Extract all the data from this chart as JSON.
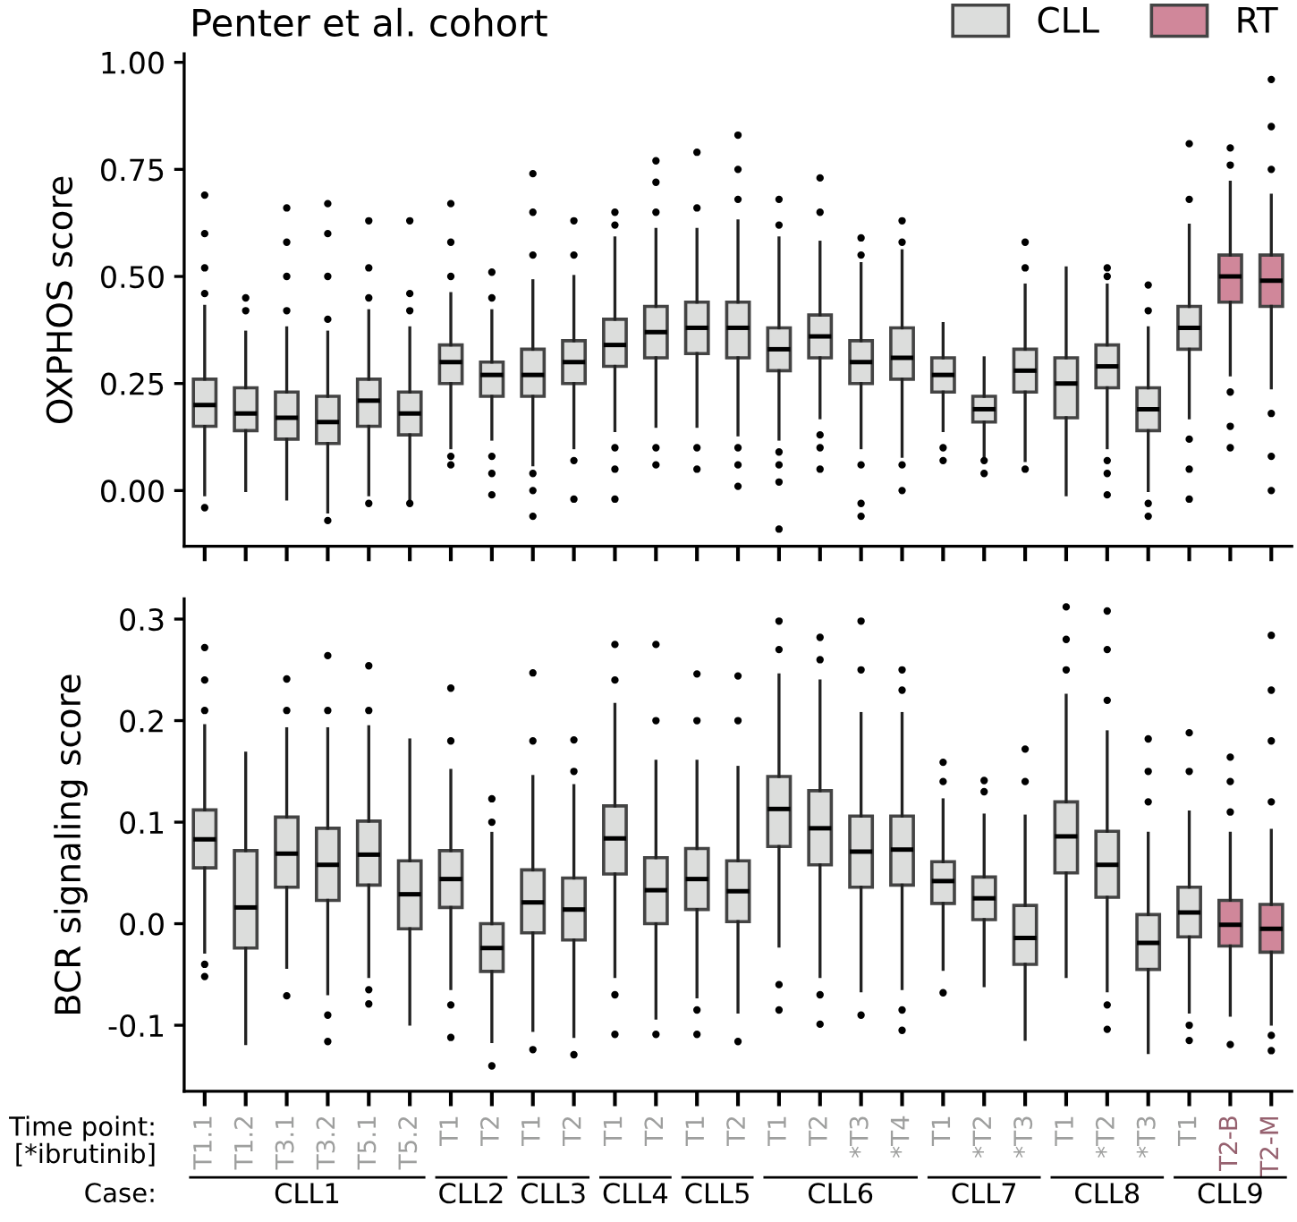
{
  "chart_data": [
    {
      "type": "box",
      "title": "Penter et al. cohort",
      "ylabel": "OXPHOS score",
      "legend": "top right",
      "tick_labels": "y",
      "categories": [
        null,
        null,
        null,
        null,
        null,
        null,
        null,
        null,
        null,
        null,
        null,
        null,
        null,
        null,
        null,
        null,
        null,
        null,
        null,
        null,
        null,
        null,
        null,
        null,
        null,
        null,
        null
      ],
      "ylim": [
        -0.13,
        1.02
      ],
      "yticks": [
        {
          "value": 0,
          "label": "0.00"
        },
        {
          "value": 0.25,
          "label": "0.25"
        },
        {
          "value": 0.5,
          "label": "0.50"
        },
        {
          "value": 0.75,
          "label": "0.75"
        },
        {
          "value": 1,
          "label": "1.00"
        }
      ],
      "series": [
        {
          "name": "CLL",
          "color": "#dcdddc",
          "boxes": [
            {
              "low": -0.01,
              "q1": 0.15,
              "median": 0.2,
              "q3": 0.26,
              "high": 0.43,
              "outliers": [
                -0.04,
                0.46,
                0.52,
                0.6,
                0.69
              ]
            },
            {
              "low": 0.0,
              "q1": 0.14,
              "median": 0.18,
              "q3": 0.24,
              "high": 0.37,
              "outliers": [
                0.42,
                0.45
              ]
            },
            {
              "low": -0.02,
              "q1": 0.12,
              "median": 0.17,
              "q3": 0.23,
              "high": 0.38,
              "outliers": [
                0.42,
                0.5,
                0.58,
                0.66
              ]
            },
            {
              "low": -0.05,
              "q1": 0.11,
              "median": 0.16,
              "q3": 0.22,
              "high": 0.37,
              "outliers": [
                -0.07,
                0.4,
                0.5,
                0.6,
                0.67
              ]
            },
            {
              "low": -0.01,
              "q1": 0.15,
              "median": 0.21,
              "q3": 0.26,
              "high": 0.42,
              "outliers": [
                -0.03,
                0.45,
                0.52,
                0.63
              ]
            },
            {
              "low": -0.02,
              "q1": 0.13,
              "median": 0.18,
              "q3": 0.23,
              "high": 0.38,
              "outliers": [
                -0.03,
                0.42,
                0.46,
                0.63
              ]
            },
            {
              "low": 0.1,
              "q1": 0.25,
              "median": 0.3,
              "q3": 0.34,
              "high": 0.46,
              "outliers": [
                0.06,
                0.08,
                0.5,
                0.58,
                0.67
              ]
            },
            {
              "low": 0.12,
              "q1": 0.22,
              "median": 0.27,
              "q3": 0.3,
              "high": 0.42,
              "outliers": [
                -0.01,
                0.04,
                0.08,
                0.45,
                0.51
              ]
            },
            {
              "low": 0.06,
              "q1": 0.22,
              "median": 0.27,
              "q3": 0.33,
              "high": 0.49,
              "outliers": [
                -0.06,
                0.0,
                0.04,
                0.55,
                0.65,
                0.74
              ]
            },
            {
              "low": 0.1,
              "q1": 0.25,
              "median": 0.3,
              "q3": 0.35,
              "high": 0.5,
              "outliers": [
                -0.02,
                0.07,
                0.55,
                0.63
              ]
            },
            {
              "low": 0.14,
              "q1": 0.29,
              "median": 0.34,
              "q3": 0.4,
              "high": 0.59,
              "outliers": [
                -0.02,
                0.05,
                0.1,
                0.62,
                0.65
              ]
            },
            {
              "low": 0.15,
              "q1": 0.31,
              "median": 0.37,
              "q3": 0.43,
              "high": 0.61,
              "outliers": [
                0.06,
                0.1,
                0.65,
                0.72,
                0.77
              ]
            },
            {
              "low": 0.15,
              "q1": 0.32,
              "median": 0.38,
              "q3": 0.44,
              "high": 0.61,
              "outliers": [
                0.05,
                0.1,
                0.66,
                0.79
              ]
            },
            {
              "low": 0.13,
              "q1": 0.31,
              "median": 0.38,
              "q3": 0.44,
              "high": 0.63,
              "outliers": [
                0.01,
                0.06,
                0.1,
                0.68,
                0.75,
                0.83
              ]
            },
            {
              "low": 0.12,
              "q1": 0.28,
              "median": 0.33,
              "q3": 0.38,
              "high": 0.59,
              "outliers": [
                -0.09,
                0.02,
                0.06,
                0.09,
                0.62,
                0.68
              ]
            },
            {
              "low": 0.17,
              "q1": 0.31,
              "median": 0.36,
              "q3": 0.41,
              "high": 0.58,
              "outliers": [
                0.05,
                0.1,
                0.13,
                0.65,
                0.73
              ]
            },
            {
              "low": 0.1,
              "q1": 0.25,
              "median": 0.3,
              "q3": 0.35,
              "high": 0.53,
              "outliers": [
                -0.06,
                -0.03,
                0.06,
                0.55,
                0.59
              ]
            },
            {
              "low": 0.08,
              "q1": 0.26,
              "median": 0.31,
              "q3": 0.38,
              "high": 0.56,
              "outliers": [
                0.0,
                0.06,
                0.58,
                0.63
              ]
            },
            {
              "low": 0.14,
              "q1": 0.23,
              "median": 0.27,
              "q3": 0.31,
              "high": 0.39,
              "outliers": [
                0.07,
                0.1
              ]
            },
            {
              "low": 0.08,
              "q1": 0.16,
              "median": 0.19,
              "q3": 0.22,
              "high": 0.31,
              "outliers": [
                0.04,
                0.07
              ]
            },
            {
              "low": 0.07,
              "q1": 0.23,
              "median": 0.28,
              "q3": 0.33,
              "high": 0.48,
              "outliers": [
                0.05,
                0.52,
                0.58
              ]
            },
            {
              "low": -0.01,
              "q1": 0.17,
              "median": 0.25,
              "q3": 0.31,
              "high": 0.52
            },
            {
              "low": 0.1,
              "q1": 0.24,
              "median": 0.29,
              "q3": 0.34,
              "high": 0.48,
              "outliers": [
                -0.01,
                0.04,
                0.07,
                0.5,
                0.52
              ]
            },
            {
              "low": 0.0,
              "q1": 0.14,
              "median": 0.19,
              "q3": 0.24,
              "high": 0.38,
              "outliers": [
                -0.06,
                -0.03,
                0.42,
                0.48
              ]
            },
            {
              "low": 0.17,
              "q1": 0.33,
              "median": 0.38,
              "q3": 0.43,
              "high": 0.62,
              "outliers": [
                -0.02,
                0.05,
                0.12,
                0.68,
                0.81
              ]
            },
            null,
            null
          ]
        },
        {
          "name": "RT",
          "color": "#d0879a",
          "boxes": [
            null,
            null,
            null,
            null,
            null,
            null,
            null,
            null,
            null,
            null,
            null,
            null,
            null,
            null,
            null,
            null,
            null,
            null,
            null,
            null,
            null,
            null,
            null,
            null,
            null,
            {
              "low": 0.27,
              "q1": 0.44,
              "median": 0.5,
              "q3": 0.55,
              "high": 0.72,
              "outliers": [
                0.1,
                0.15,
                0.23,
                0.76,
                0.8
              ]
            },
            {
              "low": 0.24,
              "q1": 0.43,
              "median": 0.49,
              "q3": 0.55,
              "high": 0.69,
              "outliers": [
                0.0,
                0.08,
                0.18,
                0.75,
                0.85,
                0.96
              ]
            }
          ]
        }
      ]
    },
    {
      "type": "box",
      "ylabel": "BCR signaling score",
      "categories": [
        "T1.1",
        "T1.2",
        "T3.1",
        "T3.2",
        "T5.1",
        "T5.2",
        "T1",
        "T2",
        "T1",
        "T2",
        "T1",
        "T2",
        "T1",
        "T2",
        "T1",
        "T2",
        "*T3",
        "*T4",
        "T1",
        "*T2",
        "*T3",
        "T1",
        "*T2",
        "*T3",
        "T1",
        "T2-B",
        "T2-M"
      ],
      "ylim": [
        -0.165,
        0.32
      ],
      "yticks": [
        {
          "value": -0.1,
          "label": "-0.1"
        },
        {
          "value": 0,
          "label": "0.0"
        },
        0.1,
        0.2,
        0.3
      ],
      "annotations": [
        "Time point:\n[*ibrutinib]",
        "Case:",
        "CLL1",
        "CLL2",
        "CLL3",
        "CLL4",
        "CLL5",
        "CLL6",
        "CLL7",
        "CLL8",
        "CLL9"
      ],
      "series": [
        {
          "color": "#dcdddc",
          "boxes": [
            {
              "low": -0.028,
              "q1": 0.055,
              "median": 0.083,
              "q3": 0.112,
              "high": 0.195,
              "outliers": [
                -0.052,
                -0.04,
                0.21,
                0.24,
                0.272
              ]
            },
            {
              "low": -0.118,
              "q1": -0.024,
              "median": 0.016,
              "q3": 0.072,
              "high": 0.168
            },
            {
              "low": -0.043,
              "q1": 0.036,
              "median": 0.069,
              "q3": 0.105,
              "high": 0.192,
              "outliers": [
                -0.071,
                0.21,
                0.241
              ]
            },
            {
              "low": -0.069,
              "q1": 0.023,
              "median": 0.058,
              "q3": 0.094,
              "high": 0.192,
              "outliers": [
                -0.116,
                -0.09,
                0.21,
                0.264
              ]
            },
            {
              "low": -0.052,
              "q1": 0.038,
              "median": 0.068,
              "q3": 0.101,
              "high": 0.194,
              "outliers": [
                -0.079,
                -0.065,
                0.21,
                0.254
              ]
            },
            {
              "low": -0.099,
              "q1": -0.005,
              "median": 0.029,
              "q3": 0.062,
              "high": 0.181
            },
            {
              "low": -0.064,
              "q1": 0.016,
              "median": 0.044,
              "q3": 0.072,
              "high": 0.151,
              "outliers": [
                -0.112,
                -0.08,
                0.18,
                0.232
              ]
            },
            {
              "low": -0.116,
              "q1": -0.047,
              "median": -0.024,
              "q3": 0.0,
              "high": 0.089,
              "outliers": [
                -0.14,
                0.1,
                0.123
              ]
            },
            {
              "low": -0.105,
              "q1": -0.009,
              "median": 0.021,
              "q3": 0.053,
              "high": 0.145,
              "outliers": [
                -0.124,
                0.18,
                0.247
              ]
            },
            {
              "low": -0.111,
              "q1": -0.016,
              "median": 0.014,
              "q3": 0.045,
              "high": 0.136,
              "outliers": [
                -0.129,
                0.15,
                0.181
              ]
            },
            {
              "low": -0.052,
              "q1": 0.049,
              "median": 0.084,
              "q3": 0.116,
              "high": 0.216,
              "outliers": [
                -0.109,
                -0.07,
                0.24,
                0.275
              ]
            },
            {
              "low": -0.093,
              "q1": 0.0,
              "median": 0.033,
              "q3": 0.065,
              "high": 0.16,
              "outliers": [
                -0.109,
                0.2,
                0.275
              ]
            },
            {
              "low": -0.072,
              "q1": 0.014,
              "median": 0.044,
              "q3": 0.074,
              "high": 0.16,
              "outliers": [
                -0.109,
                -0.085,
                0.2,
                0.246
              ]
            },
            {
              "low": -0.087,
              "q1": 0.002,
              "median": 0.032,
              "q3": 0.062,
              "high": 0.154,
              "outliers": [
                -0.116,
                0.2,
                0.244
              ]
            },
            {
              "low": -0.022,
              "q1": 0.076,
              "median": 0.113,
              "q3": 0.145,
              "high": 0.245,
              "outliers": [
                -0.085,
                -0.06,
                0.27,
                0.298
              ]
            },
            {
              "low": -0.052,
              "q1": 0.058,
              "median": 0.094,
              "q3": 0.131,
              "high": 0.239,
              "outliers": [
                -0.099,
                -0.07,
                0.26,
                0.282
              ]
            },
            {
              "low": -0.066,
              "q1": 0.036,
              "median": 0.071,
              "q3": 0.106,
              "high": 0.207,
              "outliers": [
                -0.09,
                0.25,
                0.298
              ]
            },
            {
              "low": -0.064,
              "q1": 0.038,
              "median": 0.073,
              "q3": 0.106,
              "high": 0.207,
              "outliers": [
                -0.105,
                -0.085,
                0.23,
                0.25
              ]
            },
            {
              "low": -0.045,
              "q1": 0.02,
              "median": 0.042,
              "q3": 0.061,
              "high": 0.122,
              "outliers": [
                -0.068,
                0.14,
                0.159
              ]
            },
            {
              "low": -0.061,
              "q1": 0.004,
              "median": 0.025,
              "q3": 0.046,
              "high": 0.107,
              "outliers": [
                0.13,
                0.141
              ]
            },
            {
              "low": -0.114,
              "q1": -0.04,
              "median": -0.014,
              "q3": 0.018,
              "high": 0.106,
              "outliers": [
                0.14,
                0.172
              ]
            },
            {
              "low": -0.052,
              "q1": 0.05,
              "median": 0.086,
              "q3": 0.12,
              "high": 0.225,
              "outliers": [
                0.25,
                0.28,
                0.312
              ]
            },
            {
              "low": -0.066,
              "q1": 0.026,
              "median": 0.058,
              "q3": 0.091,
              "high": 0.189,
              "outliers": [
                -0.104,
                -0.08,
                0.22,
                0.27,
                0.308
              ]
            },
            {
              "low": -0.127,
              "q1": -0.045,
              "median": -0.019,
              "q3": 0.009,
              "high": 0.089,
              "outliers": [
                0.12,
                0.15,
                0.182
              ]
            },
            {
              "low": -0.087,
              "q1": -0.013,
              "median": 0.011,
              "q3": 0.036,
              "high": 0.11,
              "outliers": [
                -0.115,
                -0.1,
                0.15,
                0.188
              ]
            },
            null,
            null
          ]
        },
        {
          "color": "#d0879a",
          "boxes": [
            null,
            null,
            null,
            null,
            null,
            null,
            null,
            null,
            null,
            null,
            null,
            null,
            null,
            null,
            null,
            null,
            null,
            null,
            null,
            null,
            null,
            null,
            null,
            null,
            null,
            {
              "low": -0.09,
              "q1": -0.022,
              "median": -0.001,
              "q3": 0.023,
              "high": 0.089,
              "outliers": [
                -0.119,
                0.11,
                0.14,
                0.164
              ]
            },
            {
              "low": -0.099,
              "q1": -0.028,
              "median": -0.005,
              "q3": 0.019,
              "high": 0.092,
              "outliers": [
                -0.125,
                -0.11,
                0.12,
                0.18,
                0.23,
                0.284
              ]
            }
          ]
        }
      ]
    }
  ]
}
